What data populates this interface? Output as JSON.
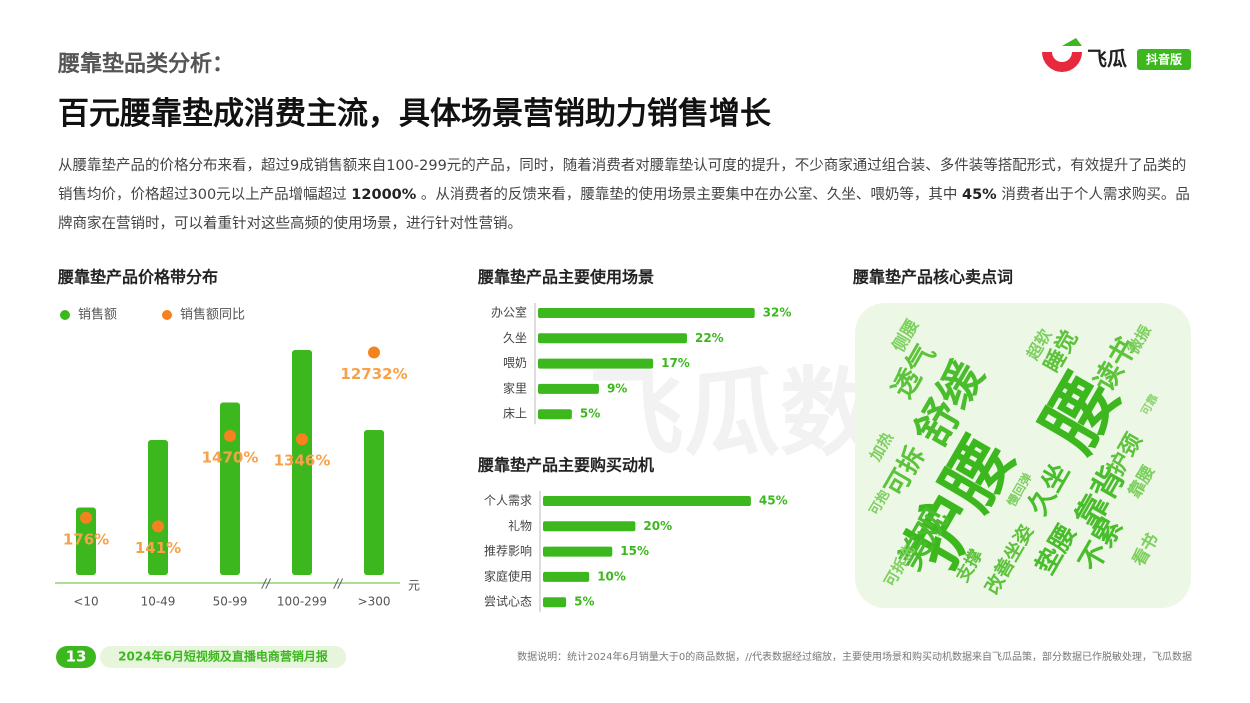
{
  "header": {
    "section": "腰靠垫品类分析：",
    "title": "百元腰靠垫成消费主流，具体场景营销助力销售增长",
    "logo": "飞瓜",
    "badge": "抖音版",
    "watermark": "飞瓜数据"
  },
  "paragraph": [
    {
      "text": "从腰靠垫产品的价格分布来看，超过9成销售额来自100-299元的产品，同时，随着消费者对腰靠垫认可度的提升，不少商家通过组合装、多件装等搭配形式，有效提升了品类的销售均价，价格超过300元以上产品增幅超过 ",
      "bold": false
    },
    {
      "text": "12000%",
      "bold": true
    },
    {
      "text": " 。从消费者的反馈来看，腰靠垫的使用场景主要集中在办公室、久坐、喂奶等，其中 ",
      "bold": false
    },
    {
      "text": "45%",
      "bold": true
    },
    {
      "text": " 消费者出于个人需求购买。品牌商家在营销时，可以着重针对这些高频的使用场景，进行针对性营销。",
      "bold": false
    }
  ],
  "chart_data": [
    {
      "type": "bar",
      "title": "腰靠垫产品价格带分布",
      "categories": [
        "<10",
        "10-49",
        "50-99",
        "100-299",
        ">300"
      ],
      "x_unit": "元",
      "break_mark": "//",
      "ylim": [
        0,
        100
      ],
      "y2lim": [
        40,
        20000
      ],
      "y2_log": true,
      "series": [
        {
          "name": "销售额",
          "color": "#3cb81e",
          "values": [
            27,
            54,
            69,
            90,
            58
          ]
        },
        {
          "name": "销售额同比",
          "color": "#f5821f",
          "axis": "y2",
          "values": [
            176,
            141,
            1470,
            1346,
            12732
          ],
          "value_labels": [
            "176%",
            "141%",
            "1470%",
            "1346%",
            "12732%"
          ]
        }
      ]
    },
    {
      "type": "hbar",
      "title": "腰靠垫产品主要使用场景",
      "categories": [
        "办公室",
        "久坐",
        "喂奶",
        "家里",
        "床上"
      ],
      "values": [
        32,
        22,
        17,
        9,
        5
      ],
      "value_labels": [
        "32%",
        "22%",
        "17%",
        "9%",
        "5%"
      ],
      "color": "#3cb81e",
      "xlim": [
        0,
        35
      ]
    },
    {
      "type": "hbar",
      "title": "腰靠垫产品主要购买动机",
      "categories": [
        "个人需求",
        "礼物",
        "推荐影响",
        "家庭使用",
        "尝试心态"
      ],
      "values": [
        45,
        20,
        15,
        10,
        5
      ],
      "value_labels": [
        "45%",
        "20%",
        "15%",
        "10%",
        "5%"
      ],
      "color": "#3cb81e",
      "xlim": [
        0,
        50
      ]
    }
  ],
  "word_cloud": {
    "title": "腰靠垫产品核心卖点词",
    "words": [
      "护腰",
      "腰",
      "舒缓",
      "透气",
      "侧腰",
      "超软",
      "睡觉",
      "读书",
      "微振",
      "可靠",
      "加热",
      "可拆",
      "可抱",
      "美观",
      "可拆洗",
      "支撑",
      "改善坐姿",
      "垫腰",
      "久坐",
      "靠背",
      "不累",
      "护颈",
      "靠腰",
      "看书",
      "慢回弹"
    ]
  },
  "footer": {
    "page": "13",
    "report": "2024年6月短视频及直播电商营销月报",
    "note": "数据说明：统计2024年6月销量大于0的商品数据，//代表数据经过缩放，主要使用场景和购买动机数据来自飞瓜品策，部分数据已作脱敏处理，飞瓜数据"
  }
}
